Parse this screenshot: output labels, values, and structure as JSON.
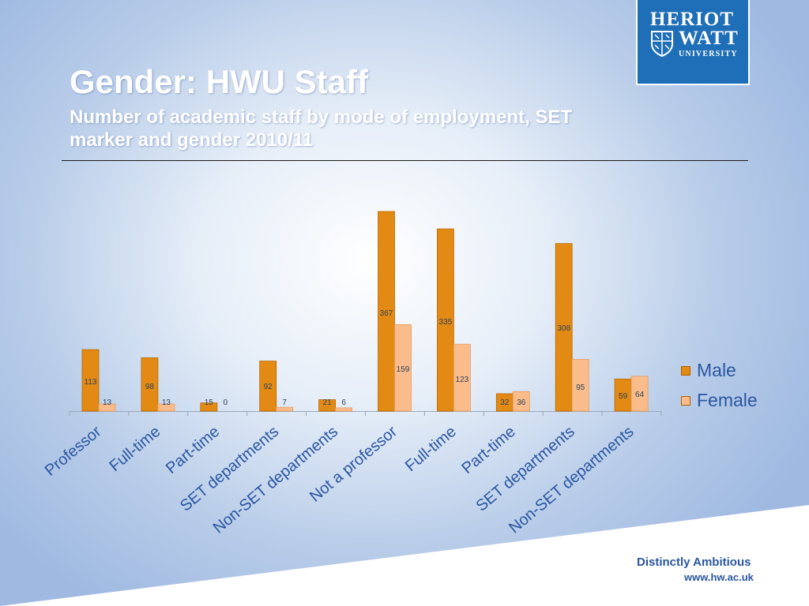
{
  "header": {
    "title": "Gender: HWU Staff",
    "subtitle": "Number of academic staff by mode of employment, SET marker and gender 2010/11"
  },
  "logo": {
    "line1": "HERIOT",
    "line2": "WATT",
    "line3": "UNIVERSITY",
    "icon": "crest-icon"
  },
  "footer": {
    "tagline": "Distinctly Ambitious",
    "website": "www.hw.ac.uk"
  },
  "colors": {
    "male": "#e28a14",
    "female": "#f9bc8a",
    "label": "#2a56a0"
  },
  "chart_data": {
    "type": "bar",
    "title": "",
    "xlabel": "",
    "ylabel": "",
    "categories": [
      "Professor",
      "Full-time",
      "Part-time",
      "SET departments",
      "Non-SET departments",
      "Not a professor",
      "Full-time",
      "Part-time",
      "SET departments",
      "Non-SET departments"
    ],
    "series": [
      {
        "name": "Male",
        "values": [
          113,
          98,
          15,
          92,
          21,
          367,
          335,
          32,
          308,
          59
        ]
      },
      {
        "name": "Female",
        "values": [
          13,
          13,
          0,
          7,
          6,
          159,
          123,
          36,
          95,
          64
        ]
      }
    ],
    "ylim": [
      0,
      367
    ],
    "data_labels": true,
    "grid": false,
    "legend_position": "right"
  }
}
